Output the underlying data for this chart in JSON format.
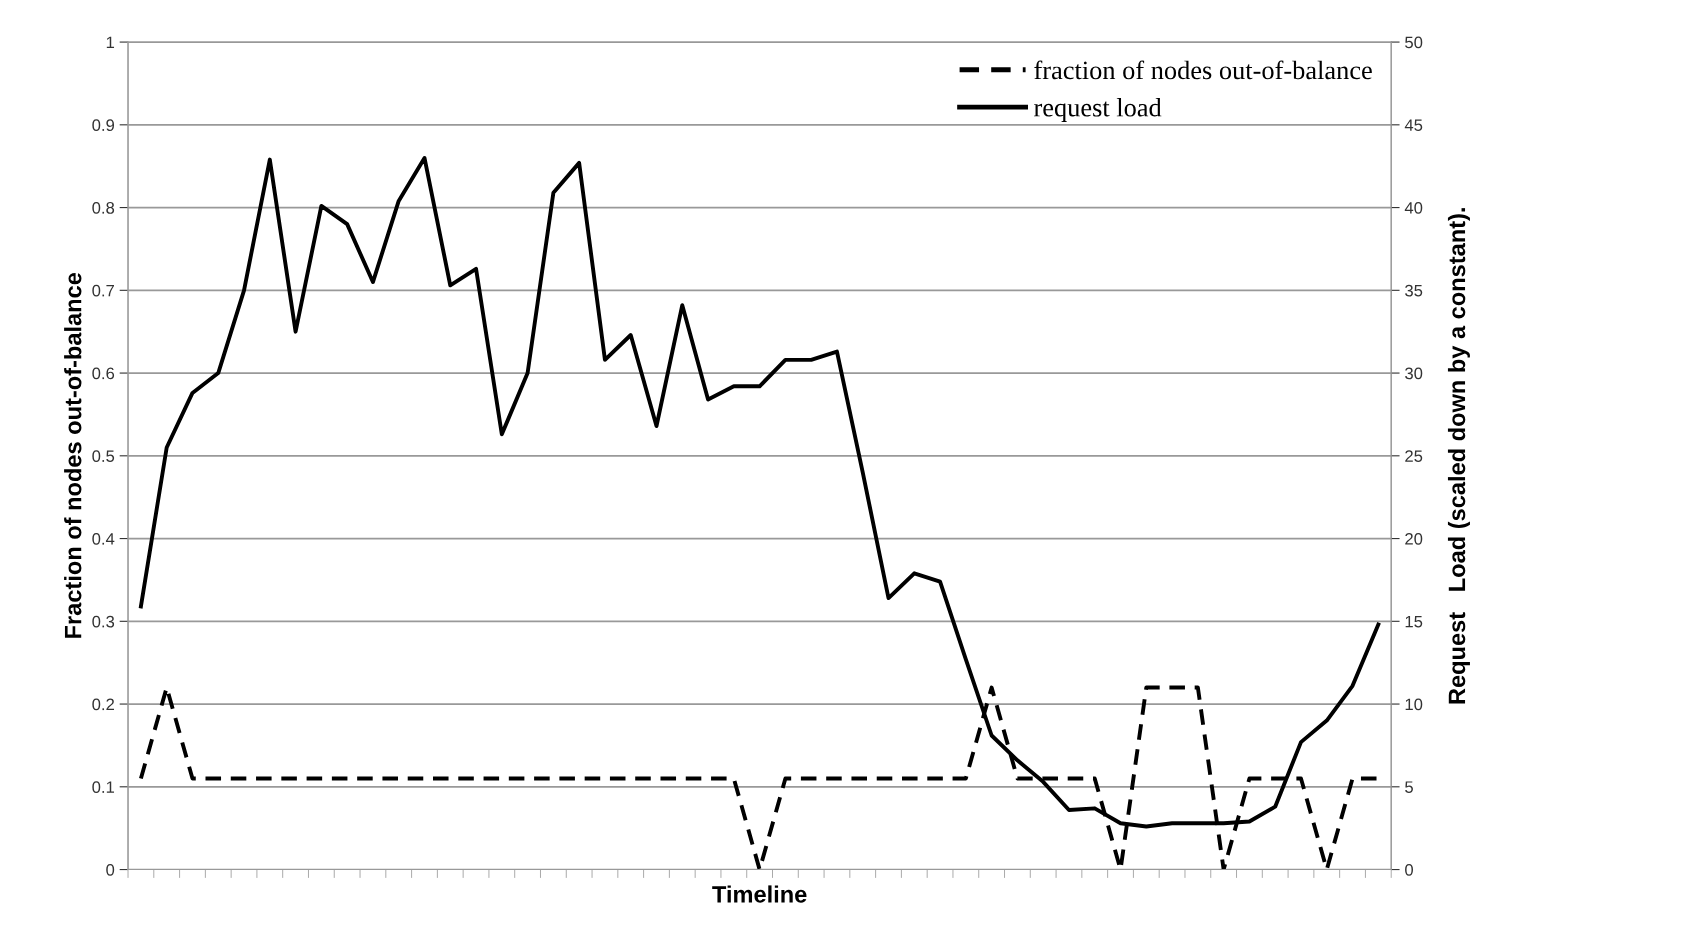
{
  "chart_data": {
    "type": "line",
    "xlabel": "Timeline",
    "ylabel": "Fraction of nodes out-of-balance",
    "y2label": "Request   Load (scaled down by a constant).",
    "categories": [
      null,
      null,
      null,
      null,
      null,
      null,
      null,
      null,
      null,
      null,
      null,
      null,
      null,
      null,
      null,
      null,
      null,
      null,
      null,
      null,
      null,
      null,
      null,
      null,
      null,
      null,
      null,
      null,
      null,
      null,
      null,
      null,
      null,
      null,
      null,
      null,
      null,
      null,
      null,
      null,
      null,
      null,
      null,
      null,
      null,
      null,
      null,
      null,
      null
    ],
    "series": [
      {
        "name": "fraction of nodes out-of-balance",
        "color": "#000000",
        "line_style": "dashed",
        "values": [
          0.11,
          0.22,
          0.11,
          0.11,
          0.11,
          0.11,
          0.11,
          0.11,
          0.11,
          0.11,
          0.11,
          0.11,
          0.11,
          0.11,
          0.11,
          0.11,
          0.11,
          0.11,
          0.11,
          0.11,
          0.11,
          0.11,
          0.11,
          0.11,
          0,
          0.11,
          0.11,
          0.11,
          0.11,
          0.11,
          0.11,
          0.11,
          0.11,
          0.22,
          0.11,
          0.11,
          0.11,
          0.11,
          0,
          0.22,
          0.22,
          0.22,
          0,
          0.11,
          0.11,
          0.11,
          0,
          0.11,
          0.11
        ]
      },
      {
        "name": "request load",
        "color": "#000000",
        "line_style": "solid",
        "axis": "y2",
        "values": [
          15.9,
          25.5,
          28.8,
          30.0,
          35.0,
          42.9,
          32.5,
          40.1,
          39.0,
          35.5,
          40.4,
          43.0,
          35.3,
          36.3,
          26.3,
          30.0,
          40.9,
          42.7,
          30.8,
          32.3,
          26.8,
          34.1,
          28.4,
          29.2,
          29.2,
          30.8,
          30.8,
          31.3,
          24.0,
          16.4,
          17.9,
          17.4,
          12.7,
          8.1,
          6.6,
          5.3,
          3.6,
          3.7,
          2.8,
          2.6,
          2.8,
          2.8,
          2.8,
          2.9,
          3.8,
          7.7,
          9.0,
          11.1,
          14.8
        ]
      }
    ],
    "ylim": [
      0,
      1
    ],
    "yticks": [
      0,
      0.1,
      0.2,
      0.3,
      0.4,
      0.5,
      0.6,
      0.7,
      0.8,
      0.9,
      1
    ],
    "y2lim": [
      0,
      50
    ],
    "y2ticks": [
      0,
      5,
      10,
      15,
      20,
      25,
      30,
      35,
      40,
      45,
      50
    ],
    "grid": "y",
    "legend": "top right",
    "marker": "none"
  }
}
